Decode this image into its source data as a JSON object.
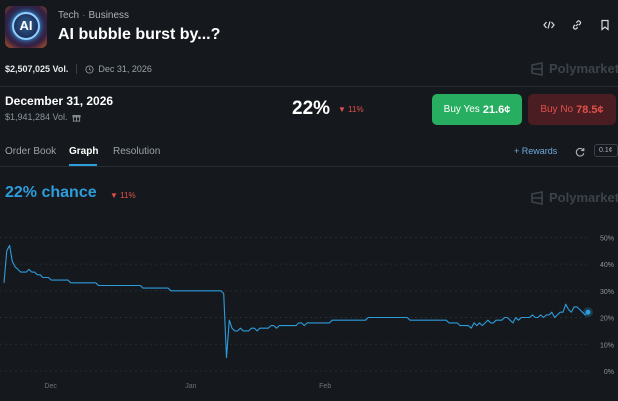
{
  "header": {
    "logo_text": "AI",
    "category": "Tech",
    "subcategory": "Business",
    "title": "AI bubble burst by...?",
    "icons": [
      "embed-icon",
      "link-icon",
      "bookmark-icon"
    ]
  },
  "meta": {
    "volume": "$2,507,025 Vol.",
    "end_date": "Dec 31, 2026",
    "watermark": "Polymarket"
  },
  "market": {
    "date": "December 31, 2026",
    "volume": "$1,941,284 Vol.",
    "probability": "22%",
    "change": "11%",
    "yes_label": "Buy Yes",
    "yes_price": "21.6¢",
    "no_label": "Buy No",
    "no_price": "78.5¢"
  },
  "tabs": [
    {
      "label": "Order Book",
      "active": false
    },
    {
      "label": "Graph",
      "active": true
    },
    {
      "label": "Resolution",
      "active": false
    }
  ],
  "rewards_label": "Rewards",
  "tick_size": "0.1¢",
  "chance": {
    "text": "22% chance",
    "change": "11%"
  },
  "colors": {
    "line": "#2d9cdb",
    "yes": "#27ae60",
    "no_text": "#e0504a",
    "no_bg": "#4a1d22"
  },
  "chart_data": {
    "type": "line",
    "ylim": [
      0,
      55
    ],
    "y_ticks": [
      "50%",
      "40%",
      "30%",
      "20%",
      "10%",
      "0%"
    ],
    "y_tick_values": [
      50,
      40,
      30,
      20,
      10,
      0
    ],
    "x_ticks": [
      "Dec",
      "Jan",
      "Feb"
    ],
    "x_tick_positions": [
      0.08,
      0.32,
      0.55
    ],
    "grid": true,
    "series": [
      {
        "values": [
          33,
          45,
          47,
          41,
          39,
          38,
          37,
          37,
          37,
          38,
          37,
          37,
          36,
          36,
          35,
          35,
          35,
          34,
          34,
          34,
          34,
          34,
          34,
          34,
          33,
          33,
          33,
          33,
          33,
          33,
          33,
          33,
          33,
          33,
          32,
          32,
          32,
          32,
          32,
          32,
          32,
          32,
          32,
          32,
          32,
          32,
          32,
          32,
          32,
          32,
          31,
          31,
          31,
          31,
          31,
          31,
          31,
          31,
          31,
          31,
          30,
          30,
          30,
          30,
          30,
          30,
          30,
          30,
          30,
          30,
          30,
          30,
          30,
          30,
          30,
          30,
          30,
          30,
          30,
          29,
          5,
          19,
          16,
          15,
          15,
          16,
          15,
          15,
          15,
          16,
          16,
          15,
          16,
          16,
          16,
          16,
          17,
          17,
          16,
          17,
          17,
          17,
          17,
          17,
          17,
          17,
          18,
          18,
          17,
          18,
          18,
          18,
          18,
          18,
          18,
          18,
          18,
          18,
          19,
          19,
          19,
          19,
          19,
          19,
          19,
          19,
          19,
          19,
          19,
          19,
          19,
          20,
          20,
          20,
          20,
          20,
          20,
          20,
          20,
          20,
          20,
          20,
          20,
          20,
          20,
          20,
          19,
          19,
          19,
          19,
          19,
          19,
          19,
          19,
          19,
          19,
          19,
          19,
          19,
          19,
          18,
          18,
          18,
          18,
          17,
          17,
          17,
          17,
          16,
          18,
          17,
          18,
          17,
          18,
          19,
          18,
          18,
          19,
          19,
          19,
          20,
          20,
          19,
          18,
          20,
          19,
          20,
          20,
          20,
          20,
          21,
          20,
          20,
          21,
          20,
          21,
          21,
          22,
          20,
          21,
          22,
          22,
          25,
          23,
          22,
          24,
          24,
          23,
          22,
          21,
          22
        ]
      }
    ]
  }
}
